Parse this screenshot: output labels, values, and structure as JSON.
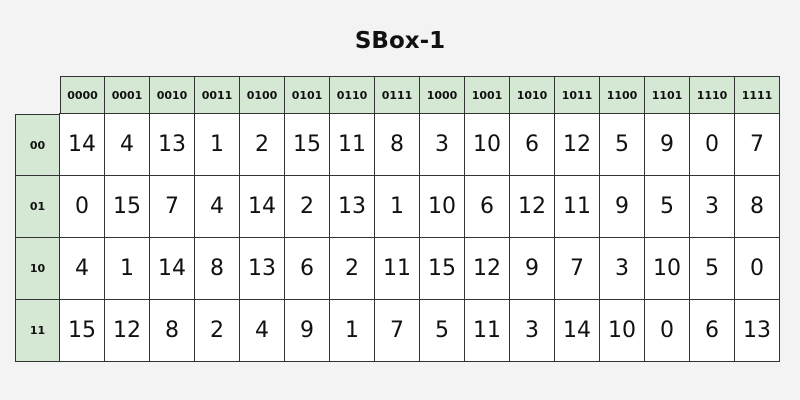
{
  "title": "SBox-1",
  "col_headers": [
    "0000",
    "0001",
    "0010",
    "0011",
    "0100",
    "0101",
    "0110",
    "0111",
    "1000",
    "1001",
    "1010",
    "1011",
    "1100",
    "1101",
    "1110",
    "1111"
  ],
  "row_headers": [
    "00",
    "01",
    "10",
    "11"
  ],
  "rows": [
    [
      "14",
      "4",
      "13",
      "1",
      "2",
      "15",
      "11",
      "8",
      "3",
      "10",
      "6",
      "12",
      "5",
      "9",
      "0",
      "7"
    ],
    [
      "0",
      "15",
      "7",
      "4",
      "14",
      "2",
      "13",
      "1",
      "10",
      "6",
      "12",
      "11",
      "9",
      "5",
      "3",
      "8"
    ],
    [
      "4",
      "1",
      "14",
      "8",
      "13",
      "6",
      "2",
      "11",
      "15",
      "12",
      "9",
      "7",
      "3",
      "10",
      "5",
      "0"
    ],
    [
      "15",
      "12",
      "8",
      "2",
      "4",
      "9",
      "1",
      "7",
      "5",
      "11",
      "3",
      "14",
      "10",
      "0",
      "6",
      "13"
    ]
  ],
  "colors": {
    "header_fill": "#d5e8d4",
    "cell_fill": "#ffffff",
    "border": "#333333",
    "background": "#f3f3f3"
  }
}
